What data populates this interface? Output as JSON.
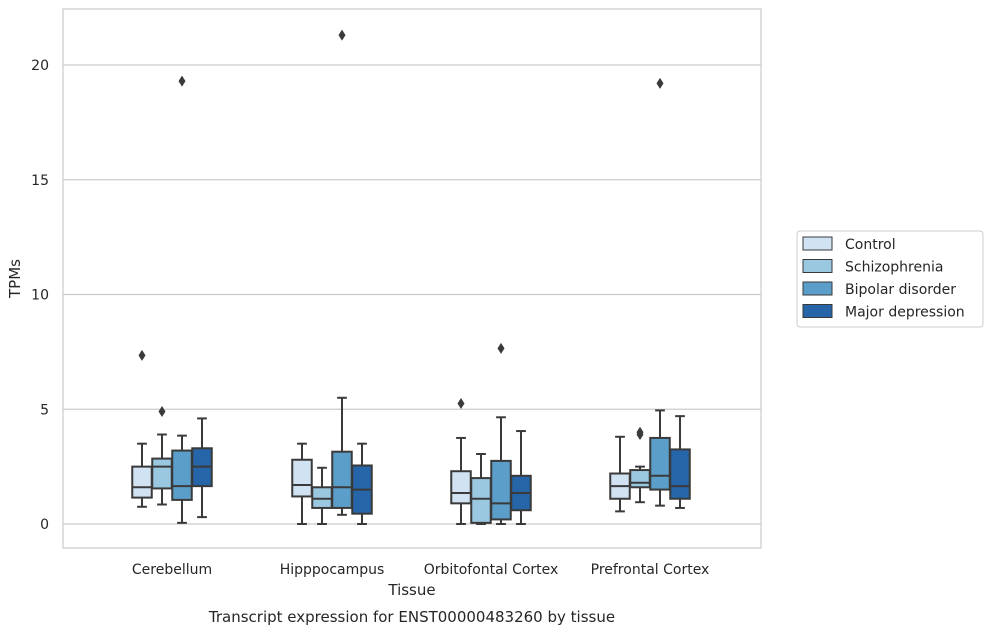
{
  "chart_data": {
    "type": "box",
    "title": "Transcript expression for ENST00000483260 by tissue",
    "xlabel": "Tissue",
    "ylabel": "TPMs",
    "ylim": [
      -1,
      22.6
    ],
    "yticks": [
      0,
      5,
      10,
      15,
      20
    ],
    "grid": "horizontal",
    "legend_position": "right",
    "categories": [
      "Cerebellum",
      "Hipppocampus",
      "Orbitofontal Cortex",
      "Prefrontal Cortex"
    ],
    "series": [
      {
        "name": "Control",
        "color": "#d1e2f2",
        "boxes": [
          {
            "whisker_low": 0.75,
            "q1": 1.15,
            "median": 1.6,
            "q3": 2.5,
            "whisker_high": 3.5,
            "outliers": [
              7.35
            ]
          },
          {
            "whisker_low": 0.0,
            "q1": 1.2,
            "median": 1.7,
            "q3": 2.8,
            "whisker_high": 3.5,
            "outliers": []
          },
          {
            "whisker_low": 0.0,
            "q1": 0.9,
            "median": 1.35,
            "q3": 2.3,
            "whisker_high": 3.75,
            "outliers": [
              5.25
            ]
          },
          {
            "whisker_low": 0.55,
            "q1": 1.1,
            "median": 1.65,
            "q3": 2.2,
            "whisker_high": 3.8,
            "outliers": []
          }
        ]
      },
      {
        "name": "Schizophrenia",
        "color": "#9ac8e0",
        "boxes": [
          {
            "whisker_low": 0.85,
            "q1": 1.55,
            "median": 2.5,
            "q3": 2.85,
            "whisker_high": 3.9,
            "outliers": [
              4.9
            ]
          },
          {
            "whisker_low": 0.0,
            "q1": 0.7,
            "median": 1.1,
            "q3": 1.6,
            "whisker_high": 2.45,
            "outliers": []
          },
          {
            "whisker_low": 0.0,
            "q1": 0.05,
            "median": 1.1,
            "q3": 2.0,
            "whisker_high": 3.05,
            "outliers": []
          },
          {
            "whisker_low": 0.95,
            "q1": 1.6,
            "median": 1.8,
            "q3": 2.35,
            "whisker_high": 2.5,
            "outliers": [
              3.9,
              4.0
            ]
          }
        ]
      },
      {
        "name": "Bipolar disorder",
        "color": "#5a9ec9",
        "boxes": [
          {
            "whisker_low": 0.05,
            "q1": 1.05,
            "median": 1.65,
            "q3": 3.2,
            "whisker_high": 3.85,
            "outliers": [
              19.3
            ]
          },
          {
            "whisker_low": 0.4,
            "q1": 0.7,
            "median": 1.6,
            "q3": 3.15,
            "whisker_high": 5.5,
            "outliers": [
              21.3
            ]
          },
          {
            "whisker_low": 0.0,
            "q1": 0.2,
            "median": 0.9,
            "q3": 2.75,
            "whisker_high": 4.65,
            "outliers": [
              7.65
            ]
          },
          {
            "whisker_low": 0.8,
            "q1": 1.5,
            "median": 2.1,
            "q3": 3.75,
            "whisker_high": 4.95,
            "outliers": [
              19.2
            ]
          }
        ]
      },
      {
        "name": "Major depression",
        "color": "#2565a8",
        "boxes": [
          {
            "whisker_low": 0.3,
            "q1": 1.65,
            "median": 2.5,
            "q3": 3.3,
            "whisker_high": 4.6,
            "outliers": []
          },
          {
            "whisker_low": 0.0,
            "q1": 0.45,
            "median": 1.5,
            "q3": 2.55,
            "whisker_high": 3.5,
            "outliers": []
          },
          {
            "whisker_low": 0.0,
            "q1": 0.6,
            "median": 1.35,
            "q3": 2.1,
            "whisker_high": 4.05,
            "outliers": []
          },
          {
            "whisker_low": 0.7,
            "q1": 1.1,
            "median": 1.65,
            "q3": 3.25,
            "whisker_high": 4.7,
            "outliers": []
          }
        ]
      }
    ]
  }
}
